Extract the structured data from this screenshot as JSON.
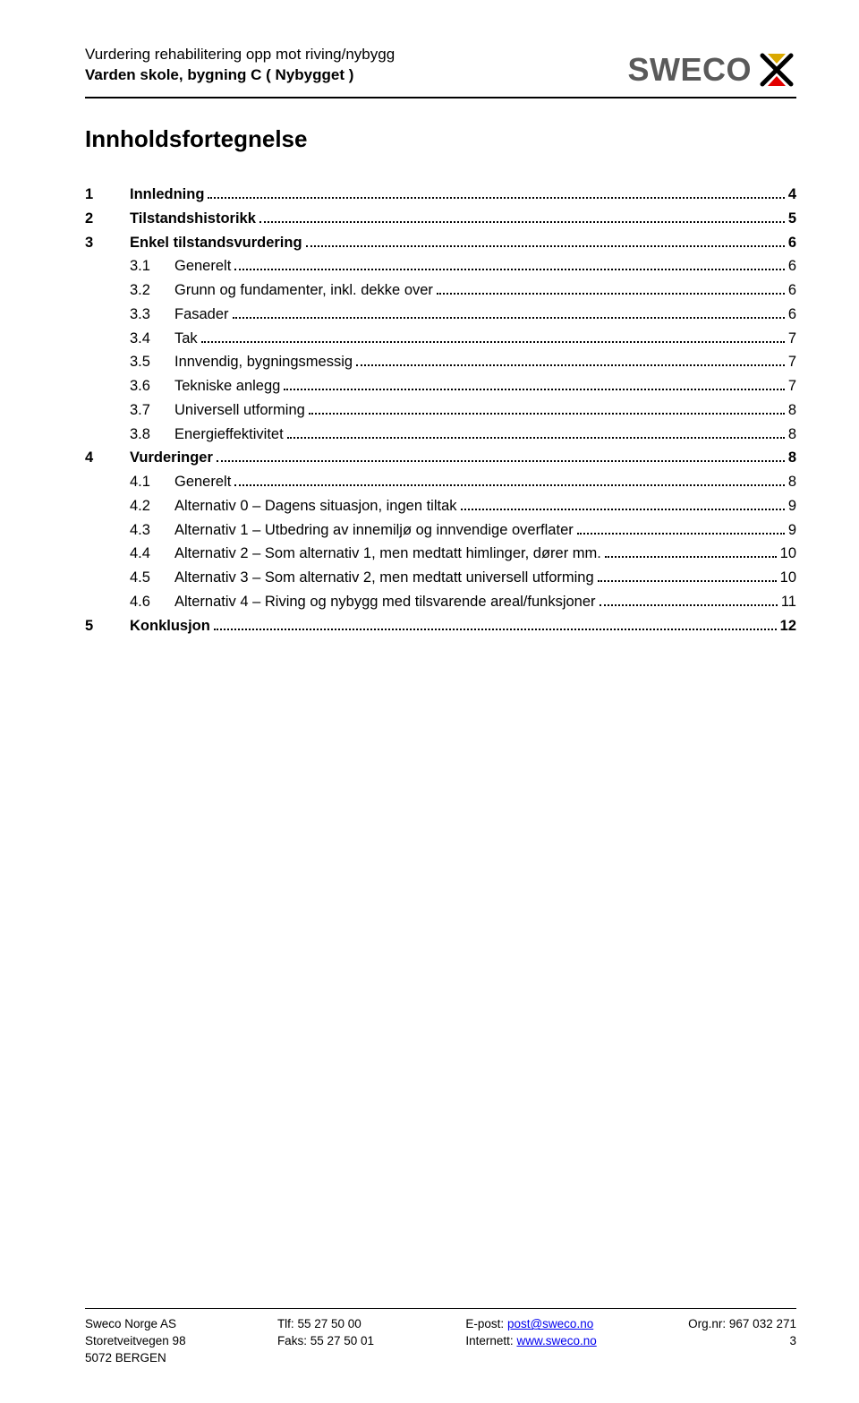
{
  "header": {
    "line1": "Vurdering rehabilitering opp mot riving/nybygg",
    "line2": "Varden skole, bygning C ( Nybygget )"
  },
  "logo": {
    "text": "SWECO",
    "text_color": "#5a5a5a",
    "top_color": "#d9a800",
    "bottom_color": "#e20000"
  },
  "toc_title": "Innholdsfortegnelse",
  "toc": [
    {
      "level": 1,
      "num": "1",
      "label": "Innledning",
      "page": "4"
    },
    {
      "level": 1,
      "num": "2",
      "label": "Tilstandshistorikk",
      "page": "5"
    },
    {
      "level": 1,
      "num": "3",
      "label": "Enkel tilstandsvurdering",
      "page": "6"
    },
    {
      "level": 2,
      "num": "3.1",
      "label": "Generelt",
      "page": "6"
    },
    {
      "level": 2,
      "num": "3.2",
      "label": "Grunn og fundamenter, inkl. dekke over",
      "page": "6"
    },
    {
      "level": 2,
      "num": "3.3",
      "label": "Fasader",
      "page": "6"
    },
    {
      "level": 2,
      "num": "3.4",
      "label": "Tak",
      "page": "7"
    },
    {
      "level": 2,
      "num": "3.5",
      "label": "Innvendig, bygningsmessig",
      "page": "7"
    },
    {
      "level": 2,
      "num": "3.6",
      "label": "Tekniske anlegg",
      "page": "7"
    },
    {
      "level": 2,
      "num": "3.7",
      "label": "Universell utforming",
      "page": "8"
    },
    {
      "level": 2,
      "num": "3.8",
      "label": "Energieffektivitet",
      "page": "8"
    },
    {
      "level": 1,
      "num": "4",
      "label": "Vurderinger",
      "page": "8"
    },
    {
      "level": 2,
      "num": "4.1",
      "label": "Generelt",
      "page": "8"
    },
    {
      "level": 2,
      "num": "4.2",
      "label": "Alternativ 0 – Dagens situasjon, ingen tiltak",
      "page": "9"
    },
    {
      "level": 2,
      "num": "4.3",
      "label": "Alternativ 1 – Utbedring av innemiljø og innvendige overflater",
      "page": "9"
    },
    {
      "level": 2,
      "num": "4.4",
      "label": "Alternativ 2 – Som alternativ 1, men medtatt himlinger, dører mm. ",
      "page": "10"
    },
    {
      "level": 2,
      "num": "4.5",
      "label": "Alternativ 3 – Som alternativ 2, men medtatt universell utforming",
      "page": "10"
    },
    {
      "level": 2,
      "num": "4.6",
      "label": "Alternativ 4 – Riving og nybygg med tilsvarende areal/funksjoner",
      "page": "11"
    },
    {
      "level": 1,
      "num": "5",
      "label": "Konklusjon",
      "page": "12"
    }
  ],
  "footer": {
    "company": "Sweco Norge AS",
    "addr1": "Storetveitvegen 98",
    "addr2": "5072 BERGEN",
    "tlf_label": "Tlf:",
    "tlf": "55 27 50 00",
    "faks_label": "Faks:",
    "faks": "55 27 50 01",
    "epost_label": "E-post:",
    "epost": "post@sweco.no",
    "internett_label": "Internett:",
    "internett": "www.sweco.no",
    "orgnr_label": "Org.nr:",
    "orgnr": "967 032 271",
    "page": "3"
  }
}
